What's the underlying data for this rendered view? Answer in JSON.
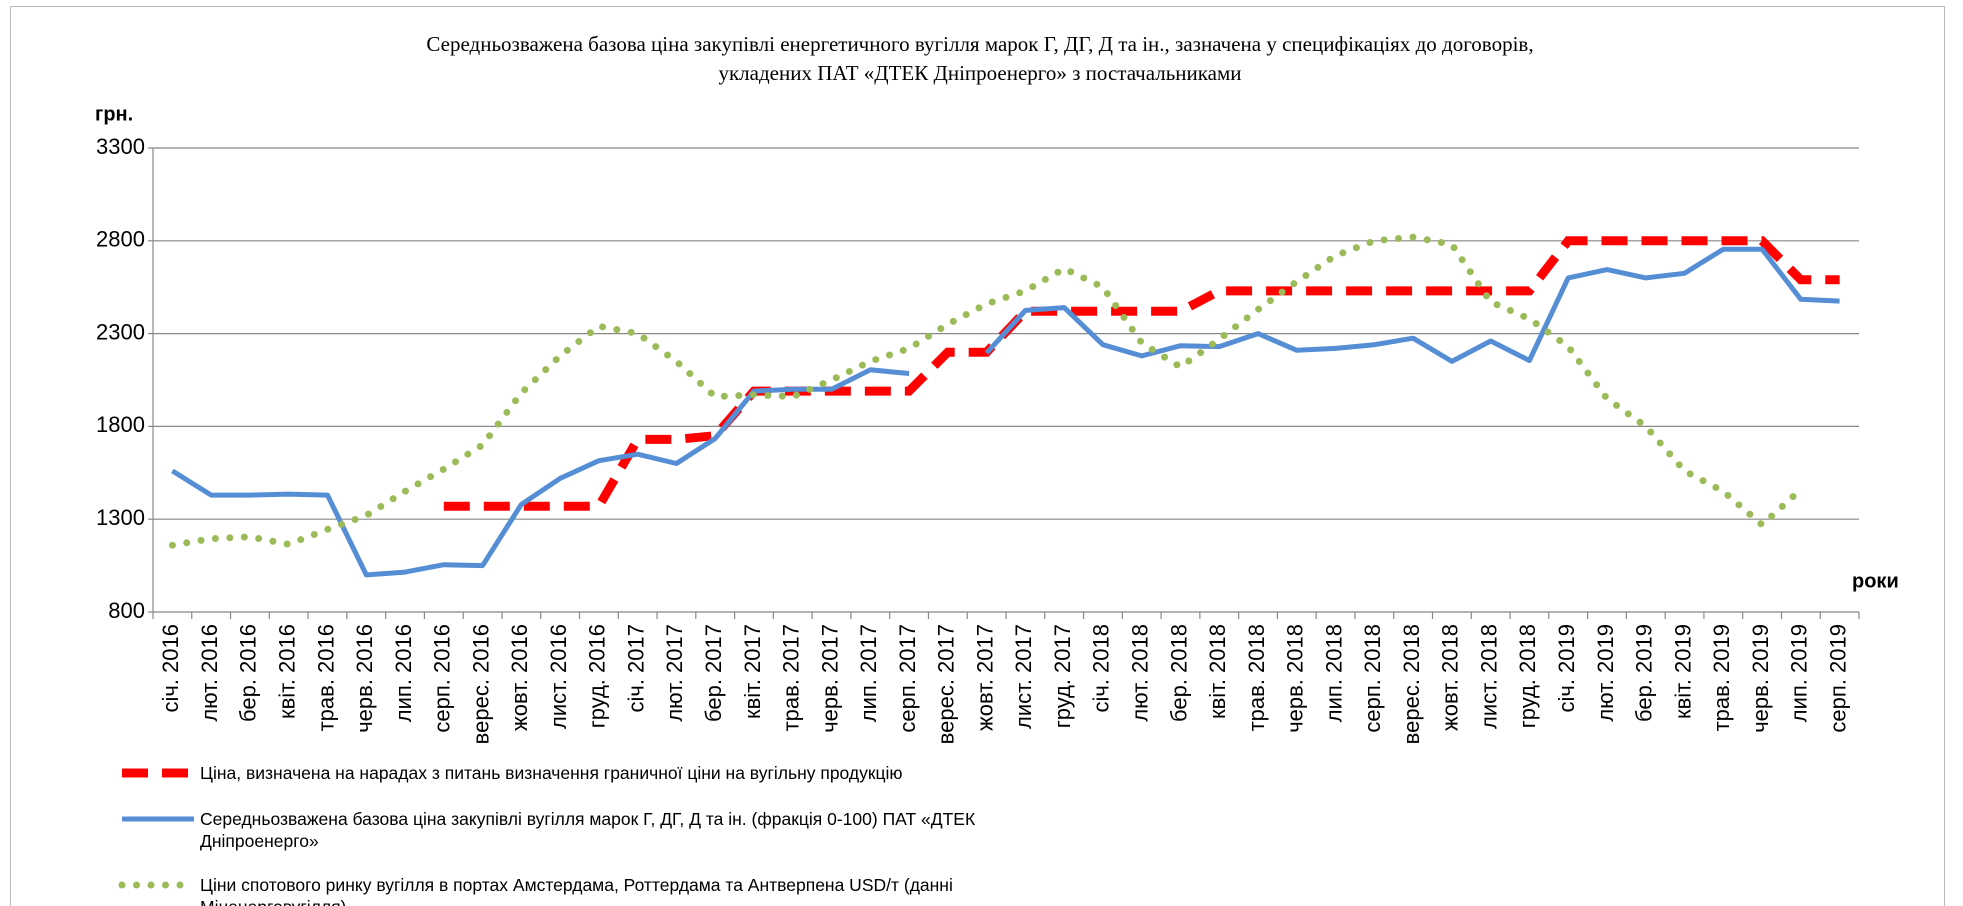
{
  "chart_data": {
    "type": "line",
    "title": [
      "Середньозважена базова ціна закупівлі енергетичного вугілля марок Г, ДГ, Д та ін., зазначена у специфікаціях до договорів,",
      "укладених ПАТ «ДТЕК Дніпроенерго» з постачальниками"
    ],
    "y_label": "грн.",
    "x_label": "роки",
    "categories": [
      "січ. 2016",
      "лют. 2016",
      "бер. 2016",
      "квіт. 2016",
      "трав. 2016",
      "черв. 2016",
      "лип. 2016",
      "серп. 2016",
      "верес. 2016",
      "жовт. 2016",
      "лист. 2016",
      "груд. 2016",
      "січ. 2017",
      "лют. 2017",
      "бер. 2017",
      "квіт. 2017",
      "трав. 2017",
      "черв. 2017",
      "лип. 2017",
      "серп. 2017",
      "верес. 2017",
      "жовт. 2017",
      "лист. 2017",
      "груд. 2017",
      "січ. 2018",
      "лют. 2018",
      "бер. 2018",
      "квіт. 2018",
      "трав. 2018",
      "черв. 2018",
      "лип. 2018",
      "серп. 2018",
      "верес. 2018",
      "жовт. 2018",
      "лист. 2018",
      "груд. 2018",
      "січ. 2019",
      "лют. 2019",
      "бер. 2019",
      "квіт. 2019",
      "трав. 2019",
      "черв. 2019",
      "лип. 2019",
      "серп. 2019"
    ],
    "series": [
      {
        "name": "Ціна, визначена на нарадах з питань визначення граничної ціни на вугільну продукцію",
        "color": "#ff0000",
        "style": "dashed",
        "values": [
          null,
          null,
          null,
          null,
          null,
          null,
          null,
          1370,
          1370,
          1370,
          1370,
          1370,
          1730,
          1730,
          1750,
          1990,
          1990,
          1990,
          1990,
          1990,
          2200,
          2200,
          2420,
          2420,
          2420,
          2420,
          2420,
          2530,
          2530,
          2530,
          2530,
          2530,
          2530,
          2530,
          2530,
          2530,
          2800,
          2800,
          2800,
          2800,
          2800,
          2800,
          2590,
          2590
        ]
      },
      {
        "name": "Середньозважена базова ціна закупівлі вугілля марок Г, ДГ, Д та ін. (фракція 0-100) ПАТ «ДТЕК Дніпроенерго»",
        "color": "#558ed5",
        "style": "solid",
        "values": [
          1560,
          1430,
          1430,
          1435,
          1430,
          1000,
          1015,
          1055,
          1050,
          1380,
          1520,
          1615,
          1650,
          1600,
          1735,
          1990,
          2000,
          2000,
          2105,
          2085,
          null,
          2195,
          2425,
          2440,
          2240,
          2180,
          2235,
          2230,
          2300,
          2210,
          2220,
          2240,
          2275,
          2150,
          2260,
          2155,
          2600,
          2645,
          2600,
          2625,
          2755,
          2755,
          2485,
          2475
        ]
      },
      {
        "name": "Ціни спотового ринку вугілля в портах Амстердама, Роттердама та Антверпена USD/т (данні Міненерговугілля)",
        "color": "#9bbb59",
        "style": "dotted",
        "values": [
          1160,
          1195,
          1205,
          1165,
          1245,
          1320,
          1450,
          1570,
          1700,
          1980,
          2180,
          2340,
          2300,
          2150,
          1960,
          1970,
          1960,
          2050,
          2150,
          2220,
          2350,
          2460,
          2530,
          2650,
          2550,
          2250,
          2120,
          2270,
          2430,
          2580,
          2720,
          2800,
          2820,
          2780,
          2470,
          2380,
          2230,
          1950,
          1800,
          1560,
          1450,
          1270,
          1460,
          null
        ]
      }
    ],
    "ylim": [
      800,
      3300
    ],
    "yticks": [
      800,
      1300,
      1800,
      2300,
      2800,
      3300
    ],
    "grid": true
  }
}
